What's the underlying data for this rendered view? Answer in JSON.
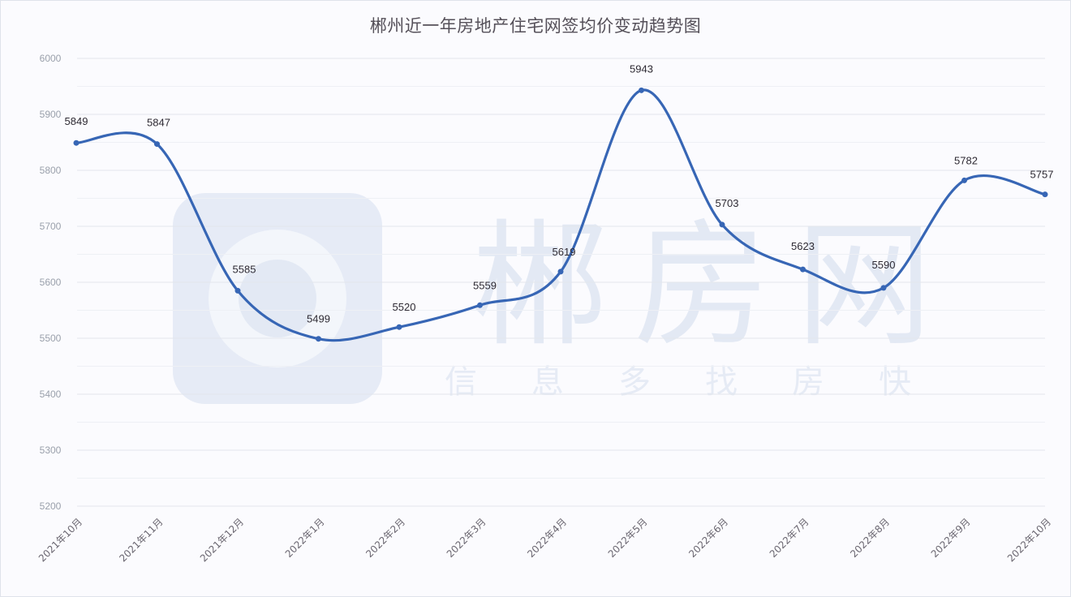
{
  "title": "郴州近一年房地产住宅网签均价变动趋势图",
  "watermark": {
    "brand": "郴房网",
    "slogan": [
      "信",
      "息",
      "多",
      "找",
      "房",
      "快"
    ]
  },
  "colors": {
    "line": "#3766b5",
    "grid": "#e3e6ec",
    "background": "#fbfbfe"
  },
  "chart_data": {
    "type": "line",
    "title": "郴州近一年房地产住宅网签均价变动趋势图",
    "xlabel": "",
    "ylabel": "",
    "categories": [
      "2021年10月",
      "2021年11月",
      "2021年12月",
      "2022年1月",
      "2022年2月",
      "2022年3月",
      "2022年4月",
      "2022年5月",
      "2022年6月",
      "2022年7月",
      "2022年8月",
      "2022年9月",
      "2022年10月"
    ],
    "series": [
      {
        "name": "网签均价",
        "values": [
          5849,
          5847,
          5585,
          5499,
          5520,
          5559,
          5619,
          5943,
          5703,
          5623,
          5590,
          5782,
          5757
        ]
      }
    ],
    "yticks": [
      "6000",
      "5900",
      "5800",
      "5700",
      "5600",
      "5500",
      "5400",
      "5300",
      "5200"
    ],
    "ylim": [
      5200,
      6000
    ],
    "grid": true,
    "legend": "none",
    "smooth": true
  }
}
